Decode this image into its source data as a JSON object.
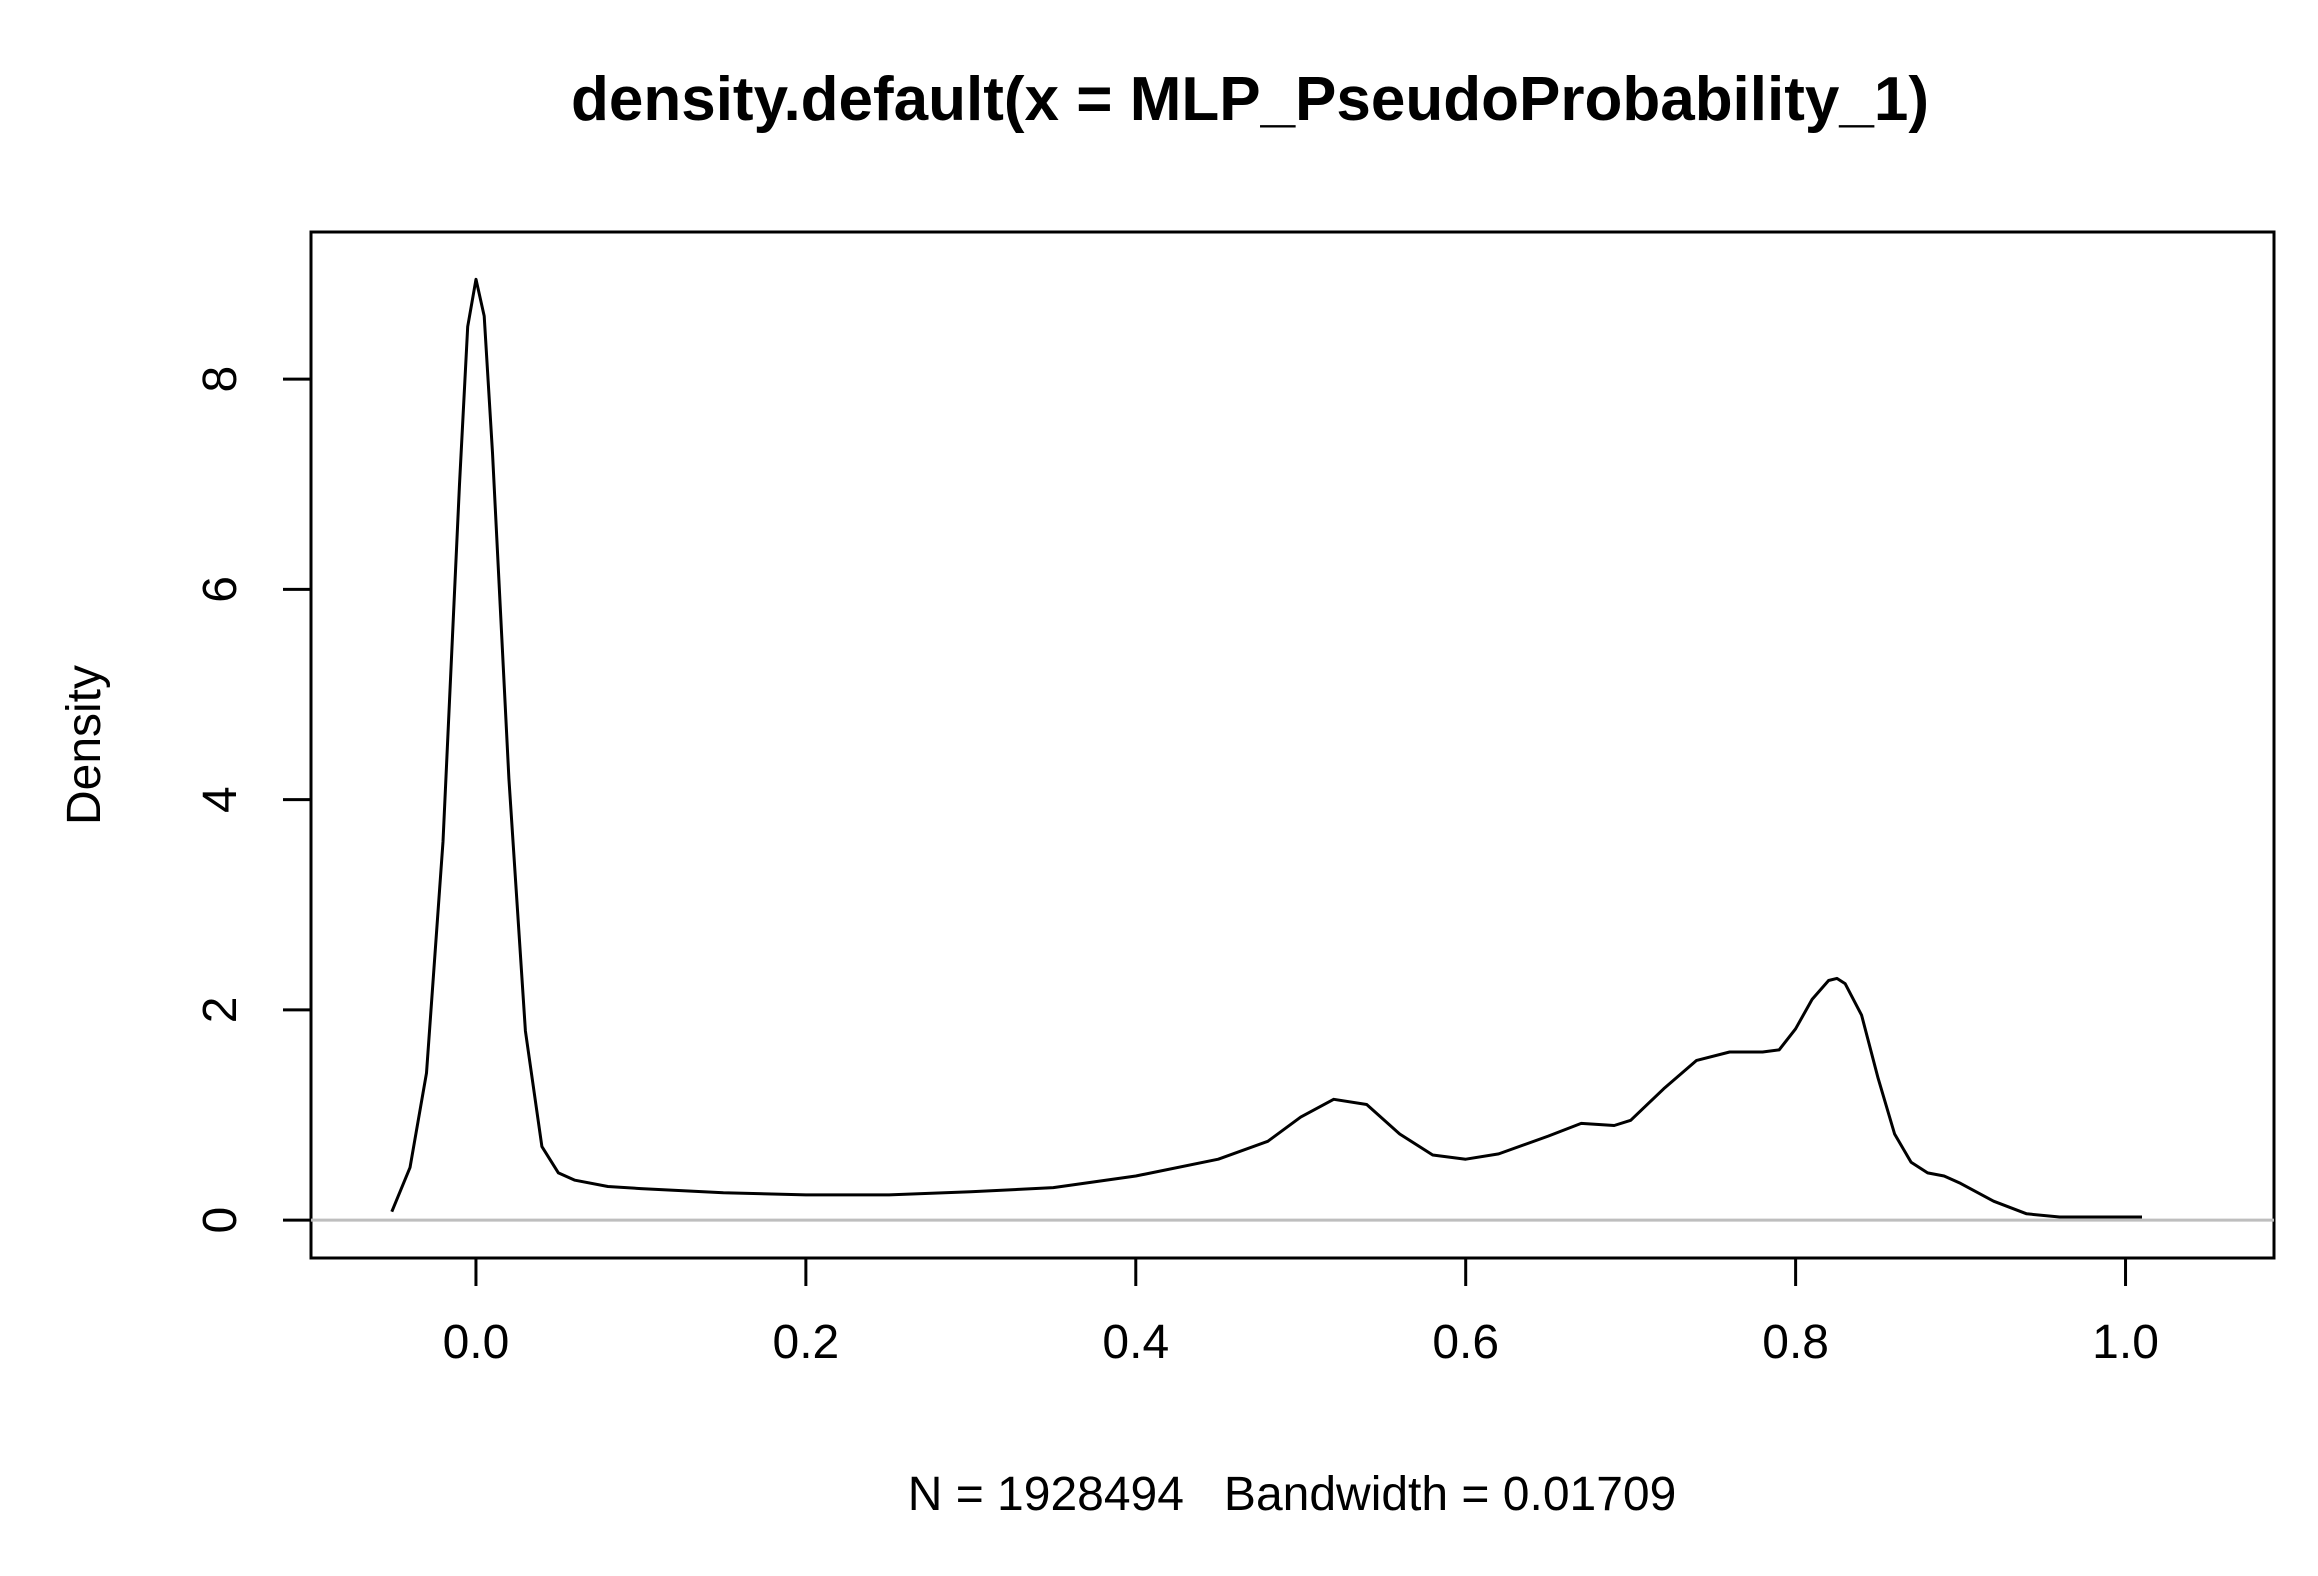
{
  "chart_data": {
    "type": "line",
    "title": "density.default(x = MLP_PseudoProbability_1)",
    "xlabel": "N = 1928494   Bandwidth = 0.01709",
    "ylabel": "Density",
    "xlim": [
      -0.1,
      1.09
    ],
    "ylim": [
      -0.36,
      9.4
    ],
    "x_ticks": [
      "0.0",
      "0.2",
      "0.4",
      "0.6",
      "0.8",
      "1.0"
    ],
    "y_ticks": [
      "0",
      "2",
      "4",
      "6",
      "8"
    ],
    "grid": false,
    "legend": "none",
    "baseline": 0,
    "baseline_color": "#bebebe",
    "line_color": "#000000",
    "series": [
      {
        "x": [
          -0.051,
          -0.04,
          -0.03,
          -0.02,
          -0.01,
          -0.005,
          0.0,
          0.005,
          0.01,
          0.02,
          0.03,
          0.04,
          0.05,
          0.06,
          0.08,
          0.1,
          0.15,
          0.2,
          0.25,
          0.3,
          0.35,
          0.4,
          0.45,
          0.48,
          0.5,
          0.52,
          0.54,
          0.56,
          0.58,
          0.6,
          0.62,
          0.65,
          0.67,
          0.69,
          0.7,
          0.72,
          0.74,
          0.76,
          0.78,
          0.79,
          0.8,
          0.81,
          0.82,
          0.825,
          0.83,
          0.84,
          0.85,
          0.86,
          0.87,
          0.88,
          0.89,
          0.9,
          0.92,
          0.94,
          0.96,
          0.98,
          1.01
        ],
        "y": [
          0.08,
          0.5,
          1.4,
          3.6,
          7.0,
          8.5,
          8.95,
          8.6,
          7.3,
          4.2,
          1.8,
          0.7,
          0.45,
          0.38,
          0.32,
          0.3,
          0.26,
          0.24,
          0.24,
          0.27,
          0.31,
          0.42,
          0.58,
          0.75,
          0.98,
          1.15,
          1.1,
          0.82,
          0.62,
          0.58,
          0.63,
          0.8,
          0.92,
          0.9,
          0.95,
          1.25,
          1.52,
          1.6,
          1.6,
          1.62,
          1.82,
          2.1,
          2.28,
          2.3,
          2.25,
          1.95,
          1.35,
          0.82,
          0.55,
          0.45,
          0.42,
          0.35,
          0.18,
          0.06,
          0.03,
          0.03,
          0.03
        ]
      }
    ]
  }
}
